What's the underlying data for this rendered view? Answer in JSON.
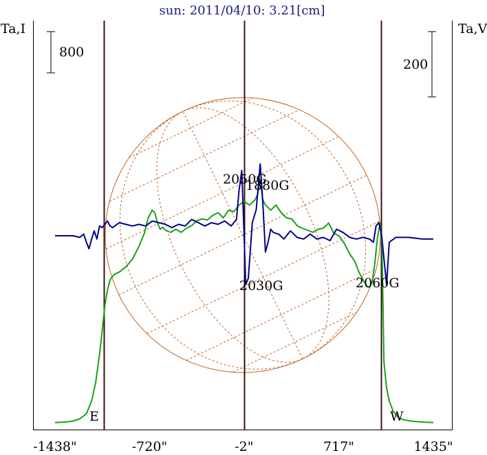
{
  "chart_data": {
    "type": "line",
    "title": "sun: 2011/04/10: 3.21[cm]",
    "left_axis_label": "Ta,I",
    "right_axis_label": "Ta,V",
    "x_ticks": [
      "-1438\"",
      "-720\"",
      "-2\"",
      "717\"",
      "1435\""
    ],
    "x_tick_values": [
      -1438,
      -720,
      -2,
      717,
      1435
    ],
    "xlim": [
      -1438,
      1435
    ],
    "left_scale_bar": "800",
    "right_scale_bar": "200",
    "vertical_markers": [
      -1065,
      -2,
      1040
    ],
    "limb_labels": {
      "east": "E",
      "west": "W"
    },
    "annotations": [
      "2050G",
      "1880G",
      "2030G",
      "2060G"
    ],
    "series": [
      {
        "color": "#1aa01a",
        "x": [
          -1438,
          -1350,
          -1300,
          -1250,
          -1200,
          -1160,
          -1130,
          -1100,
          -1080,
          -1060,
          -1040,
          -1020,
          -990,
          -950,
          -900,
          -850,
          -800,
          -760,
          -730,
          -700,
          -680,
          -660,
          -640,
          -620,
          -600,
          -560,
          -520,
          -480,
          -440,
          -400,
          -360,
          -320,
          -280,
          -240,
          -200,
          -160,
          -120,
          -80,
          -40,
          -2,
          40,
          80,
          100,
          120,
          140,
          160,
          200,
          240,
          280,
          320,
          360,
          400,
          440,
          480,
          520,
          560,
          600,
          640,
          680,
          720,
          760,
          800,
          840,
          870,
          900,
          930,
          950,
          970,
          990,
          1010,
          1030,
          1045,
          1060,
          1080,
          1100,
          1130,
          1160,
          1200,
          1260,
          1320,
          1380,
          1435
        ],
        "y": [
          30,
          40,
          60,
          100,
          200,
          450,
          800,
          1350,
          1800,
          2300,
          2600,
          2800,
          2900,
          2950,
          3050,
          3200,
          3450,
          3700,
          4000,
          4150,
          4100,
          3900,
          3780,
          3820,
          3760,
          3720,
          3780,
          3720,
          3800,
          3850,
          3950,
          3980,
          3960,
          4050,
          4100,
          4000,
          4150,
          4120,
          4250,
          4320,
          4250,
          4350,
          4450,
          4750,
          4350,
          4250,
          4150,
          4250,
          4100,
          4000,
          3980,
          3850,
          3800,
          3760,
          3720,
          3780,
          3800,
          3900,
          3700,
          3650,
          3500,
          3300,
          3150,
          2950,
          2800,
          2680,
          2650,
          2750,
          3100,
          3600,
          3900,
          3500,
          1200,
          700,
          450,
          250,
          150,
          90,
          60,
          45,
          35,
          30
        ]
      },
      {
        "color": "#00008b",
        "x": [
          -1438,
          -1300,
          -1250,
          -1220,
          -1200,
          -1180,
          -1160,
          -1140,
          -1120,
          -1100,
          -1080,
          -1060,
          -1040,
          -1020,
          -1000,
          -950,
          -900,
          -850,
          -800,
          -750,
          -700,
          -650,
          -600,
          -550,
          -500,
          -450,
          -400,
          -350,
          -300,
          -250,
          -200,
          -150,
          -100,
          -60,
          -40,
          -20,
          -2,
          10,
          30,
          60,
          90,
          120,
          140,
          160,
          180,
          200,
          220,
          260,
          300,
          350,
          400,
          450,
          500,
          550,
          600,
          650,
          700,
          750,
          800,
          850,
          900,
          950,
          980,
          1000,
          1020,
          1040,
          1060,
          1080,
          1100,
          1150,
          1250,
          1350,
          1435
        ],
        "y": [
          0,
          0,
          -5,
          5,
          -20,
          -40,
          -10,
          15,
          -10,
          30,
          25,
          35,
          45,
          30,
          25,
          40,
          35,
          30,
          35,
          30,
          45,
          40,
          35,
          25,
          35,
          30,
          50,
          40,
          30,
          40,
          35,
          45,
          30,
          50,
          140,
          200,
          0,
          -150,
          -130,
          40,
          80,
          220,
          100,
          -50,
          -20,
          20,
          10,
          5,
          -10,
          15,
          -5,
          -10,
          5,
          -10,
          -5,
          -15,
          20,
          10,
          -5,
          -10,
          -5,
          -10,
          -20,
          30,
          40,
          10,
          -70,
          -150,
          -20,
          -5,
          -5,
          -10,
          -10
        ]
      }
    ]
  }
}
